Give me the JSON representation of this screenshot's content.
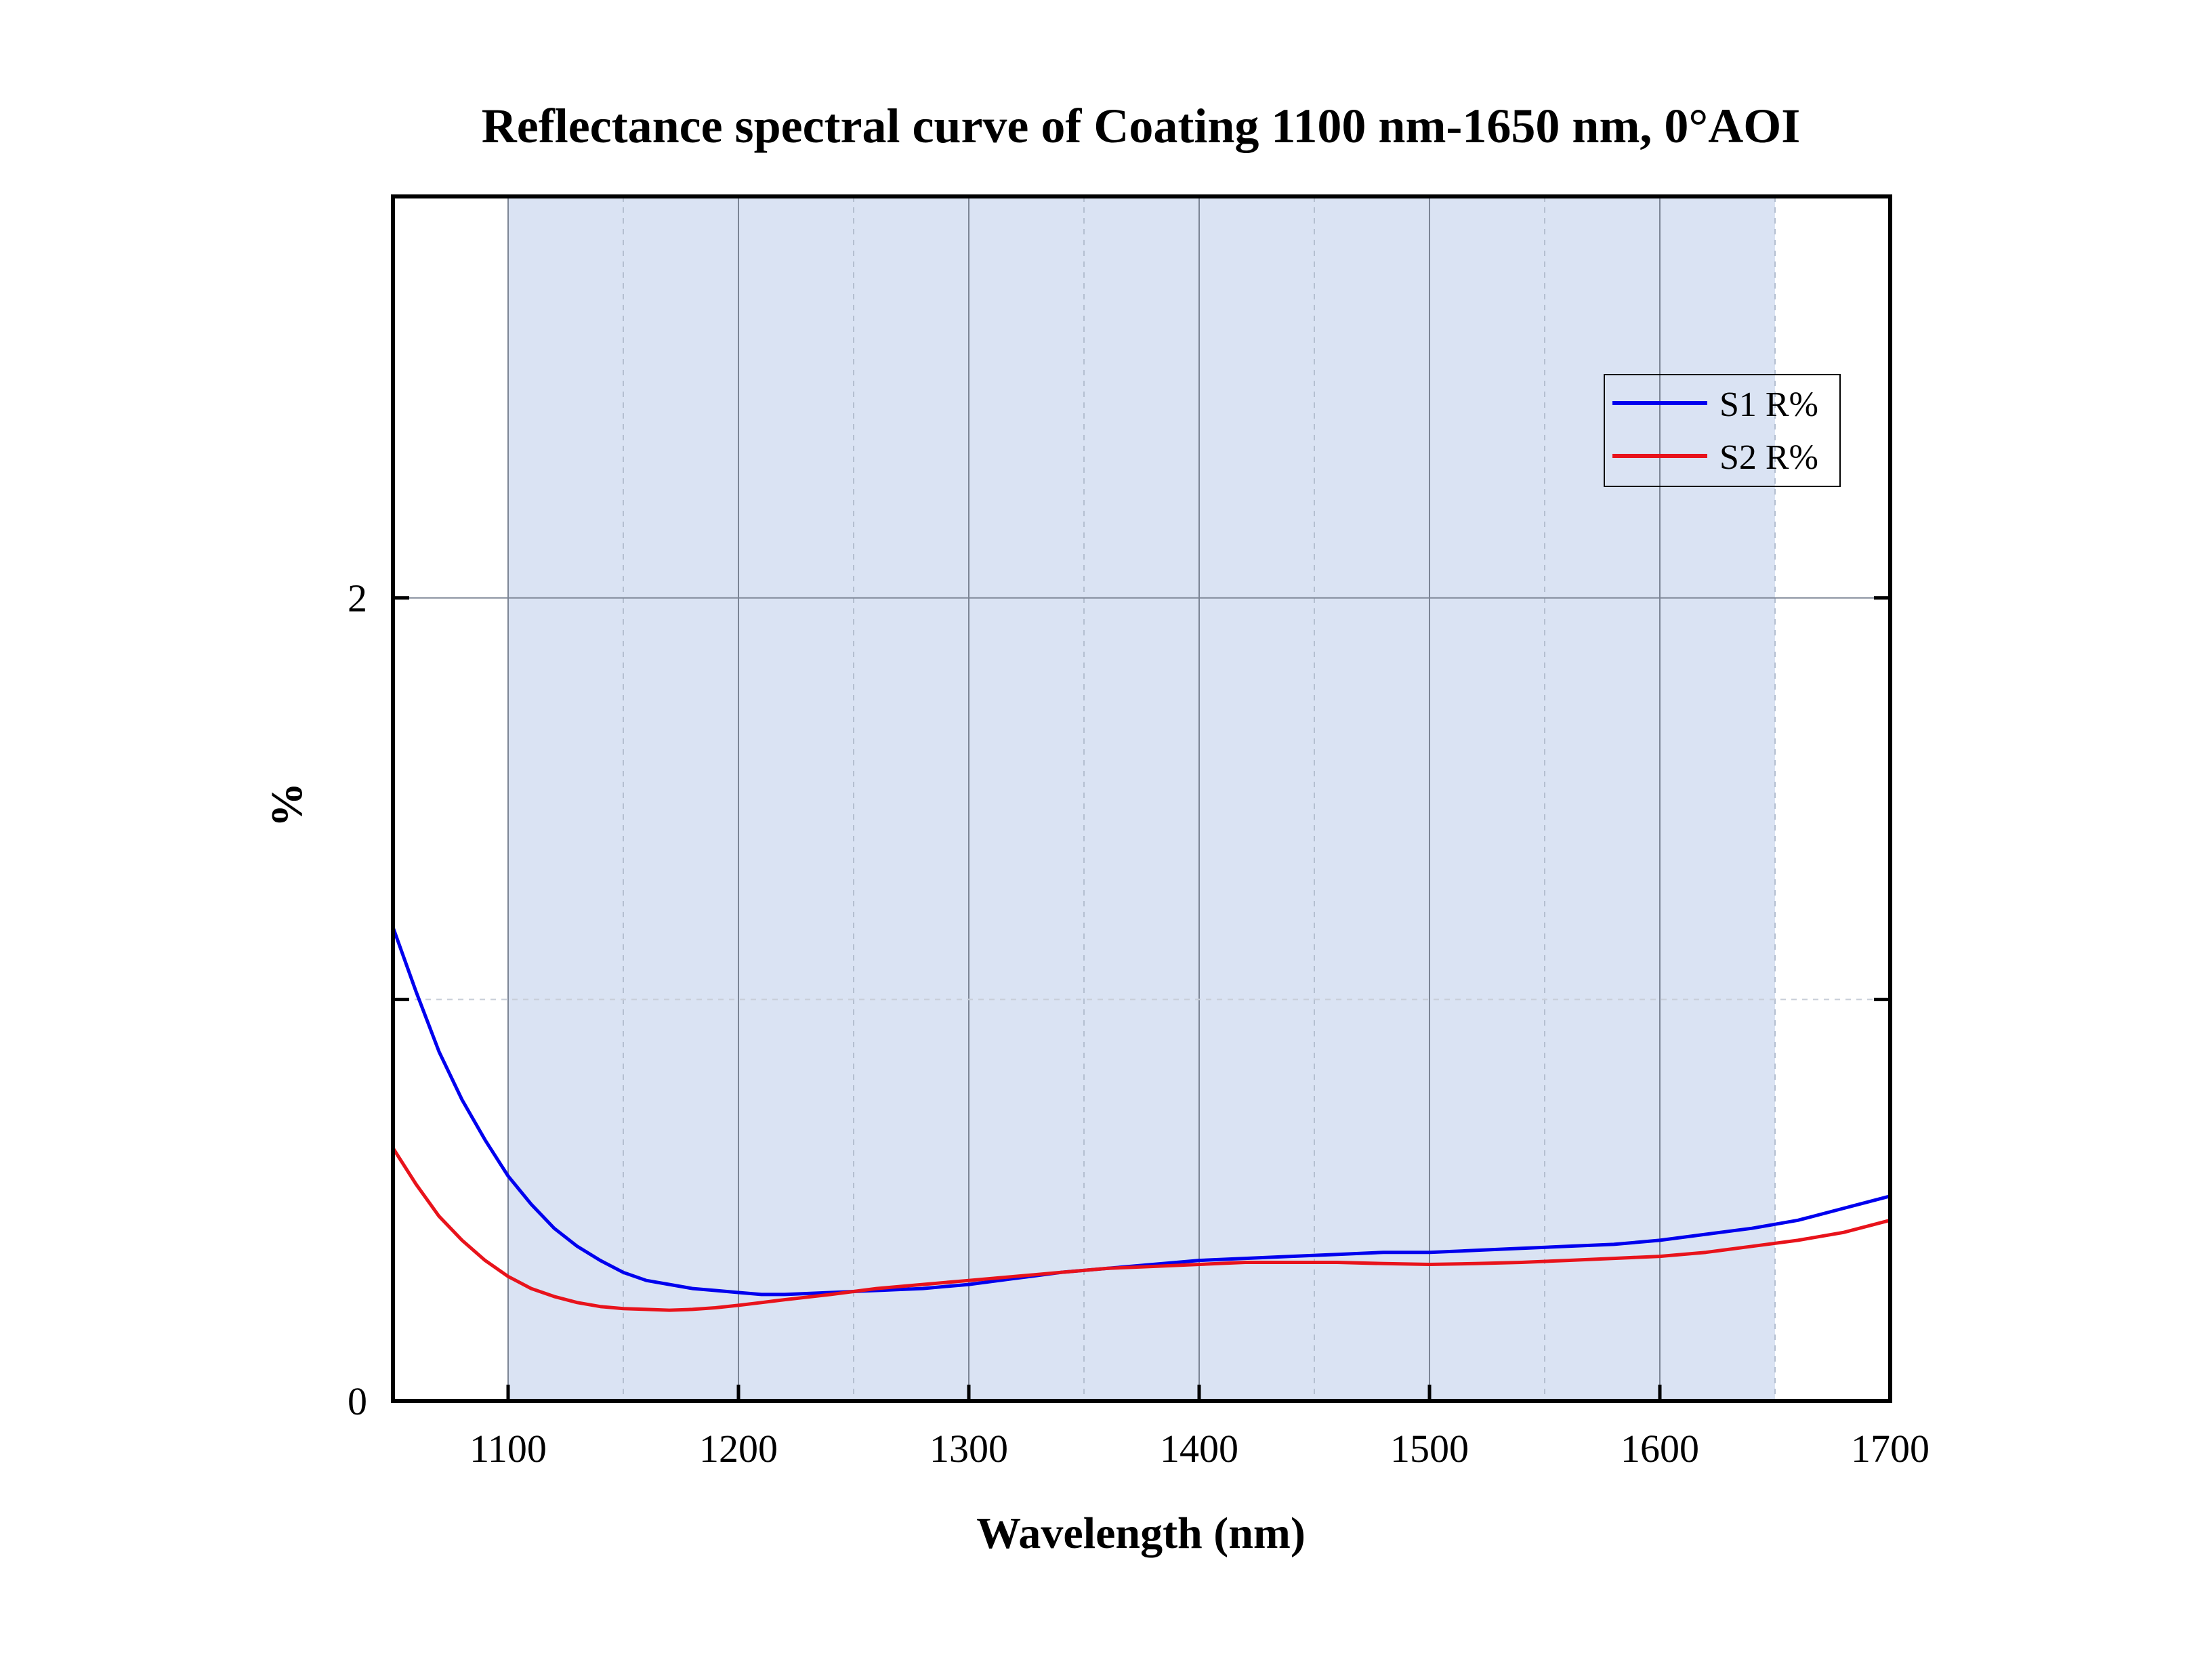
{
  "chart_data": {
    "type": "line",
    "title": "Reflectance spectral curve of Coating 1100 nm-1650 nm,  0°AOI",
    "xlabel": "Wavelength (nm)",
    "ylabel": "%",
    "xlim": [
      1050,
      1700
    ],
    "ylim": [
      0,
      3
    ],
    "x_ticks": [
      1100,
      1200,
      1300,
      1400,
      1500,
      1600,
      1700
    ],
    "x_tick_labels": [
      "1100",
      "1200",
      "1300",
      "1400",
      "1500",
      "1600",
      "1700"
    ],
    "x_minor_gridlines": [
      1150,
      1250,
      1350,
      1450,
      1550,
      1650
    ],
    "y_ticks": [
      0,
      2
    ],
    "y_tick_labels": [
      "0",
      "2"
    ],
    "y_minor_gridlines": [
      1
    ],
    "grid": true,
    "highlight_band": {
      "x": [
        1100,
        1650
      ],
      "color": "#dae3f3"
    },
    "legend_position": "top-right",
    "series": [
      {
        "name": "S1 R%",
        "color": "#0000ee",
        "x": [
          1050,
          1060,
          1070,
          1080,
          1090,
          1100,
          1110,
          1120,
          1130,
          1140,
          1150,
          1160,
          1170,
          1180,
          1190,
          1200,
          1210,
          1220,
          1240,
          1260,
          1280,
          1300,
          1320,
          1340,
          1360,
          1380,
          1400,
          1420,
          1440,
          1460,
          1480,
          1500,
          1520,
          1540,
          1560,
          1580,
          1600,
          1620,
          1640,
          1660,
          1680,
          1700
        ],
        "y": [
          1.18,
          1.02,
          0.87,
          0.75,
          0.65,
          0.56,
          0.49,
          0.43,
          0.385,
          0.35,
          0.32,
          0.3,
          0.29,
          0.28,
          0.275,
          0.27,
          0.265,
          0.265,
          0.27,
          0.275,
          0.28,
          0.29,
          0.305,
          0.32,
          0.33,
          0.34,
          0.35,
          0.355,
          0.36,
          0.365,
          0.37,
          0.37,
          0.375,
          0.38,
          0.385,
          0.39,
          0.4,
          0.415,
          0.43,
          0.45,
          0.48,
          0.51
        ]
      },
      {
        "name": "S2 R%",
        "color": "#e8131b",
        "x": [
          1050,
          1060,
          1070,
          1080,
          1090,
          1100,
          1110,
          1120,
          1130,
          1140,
          1150,
          1160,
          1170,
          1180,
          1190,
          1200,
          1210,
          1220,
          1240,
          1260,
          1280,
          1300,
          1320,
          1340,
          1360,
          1380,
          1400,
          1420,
          1440,
          1460,
          1480,
          1500,
          1520,
          1540,
          1560,
          1580,
          1600,
          1620,
          1640,
          1660,
          1680,
          1700
        ],
        "y": [
          0.63,
          0.54,
          0.46,
          0.4,
          0.35,
          0.31,
          0.28,
          0.26,
          0.245,
          0.235,
          0.23,
          0.228,
          0.226,
          0.228,
          0.232,
          0.238,
          0.245,
          0.252,
          0.265,
          0.28,
          0.29,
          0.3,
          0.31,
          0.32,
          0.33,
          0.335,
          0.34,
          0.345,
          0.345,
          0.345,
          0.342,
          0.34,
          0.342,
          0.345,
          0.35,
          0.355,
          0.36,
          0.37,
          0.385,
          0.4,
          0.42,
          0.45
        ]
      }
    ]
  }
}
